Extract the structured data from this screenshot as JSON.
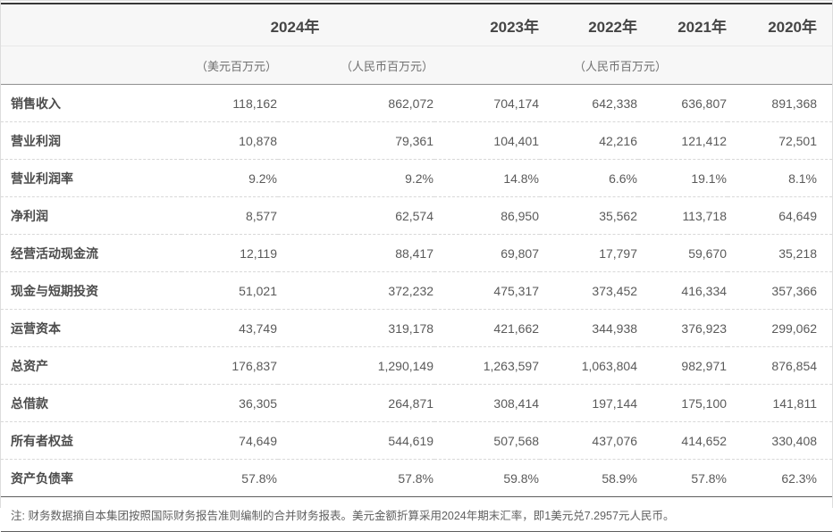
{
  "table": {
    "header": {
      "group_2024": "2024年",
      "year_2023": "2023年",
      "year_2022": "2022年",
      "year_2021": "2021年",
      "year_2020": "2020年",
      "unit_usd": "（美元百万元）",
      "unit_rmb": "（人民币百万元）",
      "unit_rmb_group": "（人民币百万元）"
    },
    "rows": [
      {
        "label": "销售收入",
        "values": [
          "118,162",
          "862,072",
          "704,174",
          "642,338",
          "636,807",
          "891,368"
        ]
      },
      {
        "label": "营业利润",
        "values": [
          "10,878",
          "79,361",
          "104,401",
          "42,216",
          "121,412",
          "72,501"
        ]
      },
      {
        "label": "营业利润率",
        "values": [
          "9.2%",
          "9.2%",
          "14.8%",
          "6.6%",
          "19.1%",
          "8.1%"
        ]
      },
      {
        "label": "净利润",
        "values": [
          "8,577",
          "62,574",
          "86,950",
          "35,562",
          "113,718",
          "64,649"
        ]
      },
      {
        "label": "经营活动现金流",
        "values": [
          "12,119",
          "88,417",
          "69,807",
          "17,797",
          "59,670",
          "35,218"
        ]
      },
      {
        "label": "现金与短期投资",
        "values": [
          "51,021",
          "372,232",
          "475,317",
          "373,452",
          "416,334",
          "357,366"
        ]
      },
      {
        "label": "运营资本",
        "values": [
          "43,749",
          "319,178",
          "421,662",
          "344,938",
          "376,923",
          "299,062"
        ]
      },
      {
        "label": "总资产",
        "values": [
          "176,837",
          "1,290,149",
          "1,263,597",
          "1,063,804",
          "982,971",
          "876,854"
        ]
      },
      {
        "label": "总借款",
        "values": [
          "36,305",
          "264,871",
          "308,414",
          "197,144",
          "175,100",
          "141,811"
        ]
      },
      {
        "label": "所有者权益",
        "values": [
          "74,649",
          "544,619",
          "507,568",
          "437,076",
          "414,652",
          "330,408"
        ]
      },
      {
        "label": "资产负债率",
        "values": [
          "57.8%",
          "57.8%",
          "59.8%",
          "58.9%",
          "57.8%",
          "62.3%"
        ]
      }
    ],
    "footnote": "注: 财务数据摘自本集团按照国际财务报告准则编制的合并财务报表。美元金额折算采用2024年期末汇率，即1美元兑7.2957元人民币。"
  },
  "colors": {
    "top_rule": "#383838",
    "frame_border": "#dddddd",
    "header_bg": "#f7f7f7",
    "header_divider": "#e9e9e9",
    "header_rule": "#909090",
    "row_divider": "#d8d8d8",
    "foot_rule": "#5e5e5e",
    "year_text": "#454545",
    "unit_text": "#6f6f6f",
    "label_text": "#4c4c4c",
    "value_text": "#5a5a5a",
    "note_text": "#606060"
  }
}
